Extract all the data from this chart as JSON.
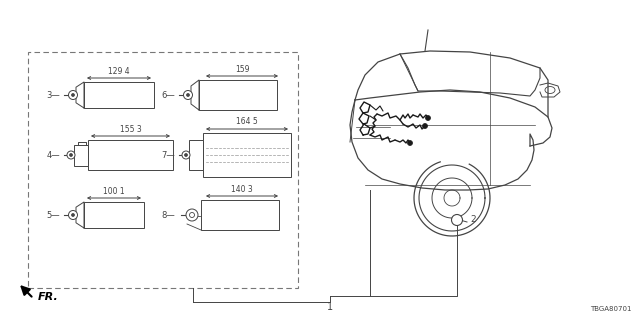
{
  "bg_color": "#ffffff",
  "diagram_code": "TBGA80701",
  "parts": [
    {
      "id": "3",
      "dim": "129 4",
      "col": 0,
      "row": 0
    },
    {
      "id": "4",
      "dim": "155 3",
      "col": 0,
      "row": 1
    },
    {
      "id": "5",
      "dim": "100 1",
      "col": 0,
      "row": 2
    },
    {
      "id": "6",
      "dim": "159",
      "col": 1,
      "row": 0
    },
    {
      "id": "7",
      "dim": "164 5",
      "col": 1,
      "row": 1
    },
    {
      "id": "8",
      "dim": "140 3",
      "col": 1,
      "row": 2
    }
  ],
  "line_color": "#444444",
  "dash_color": "#666666"
}
